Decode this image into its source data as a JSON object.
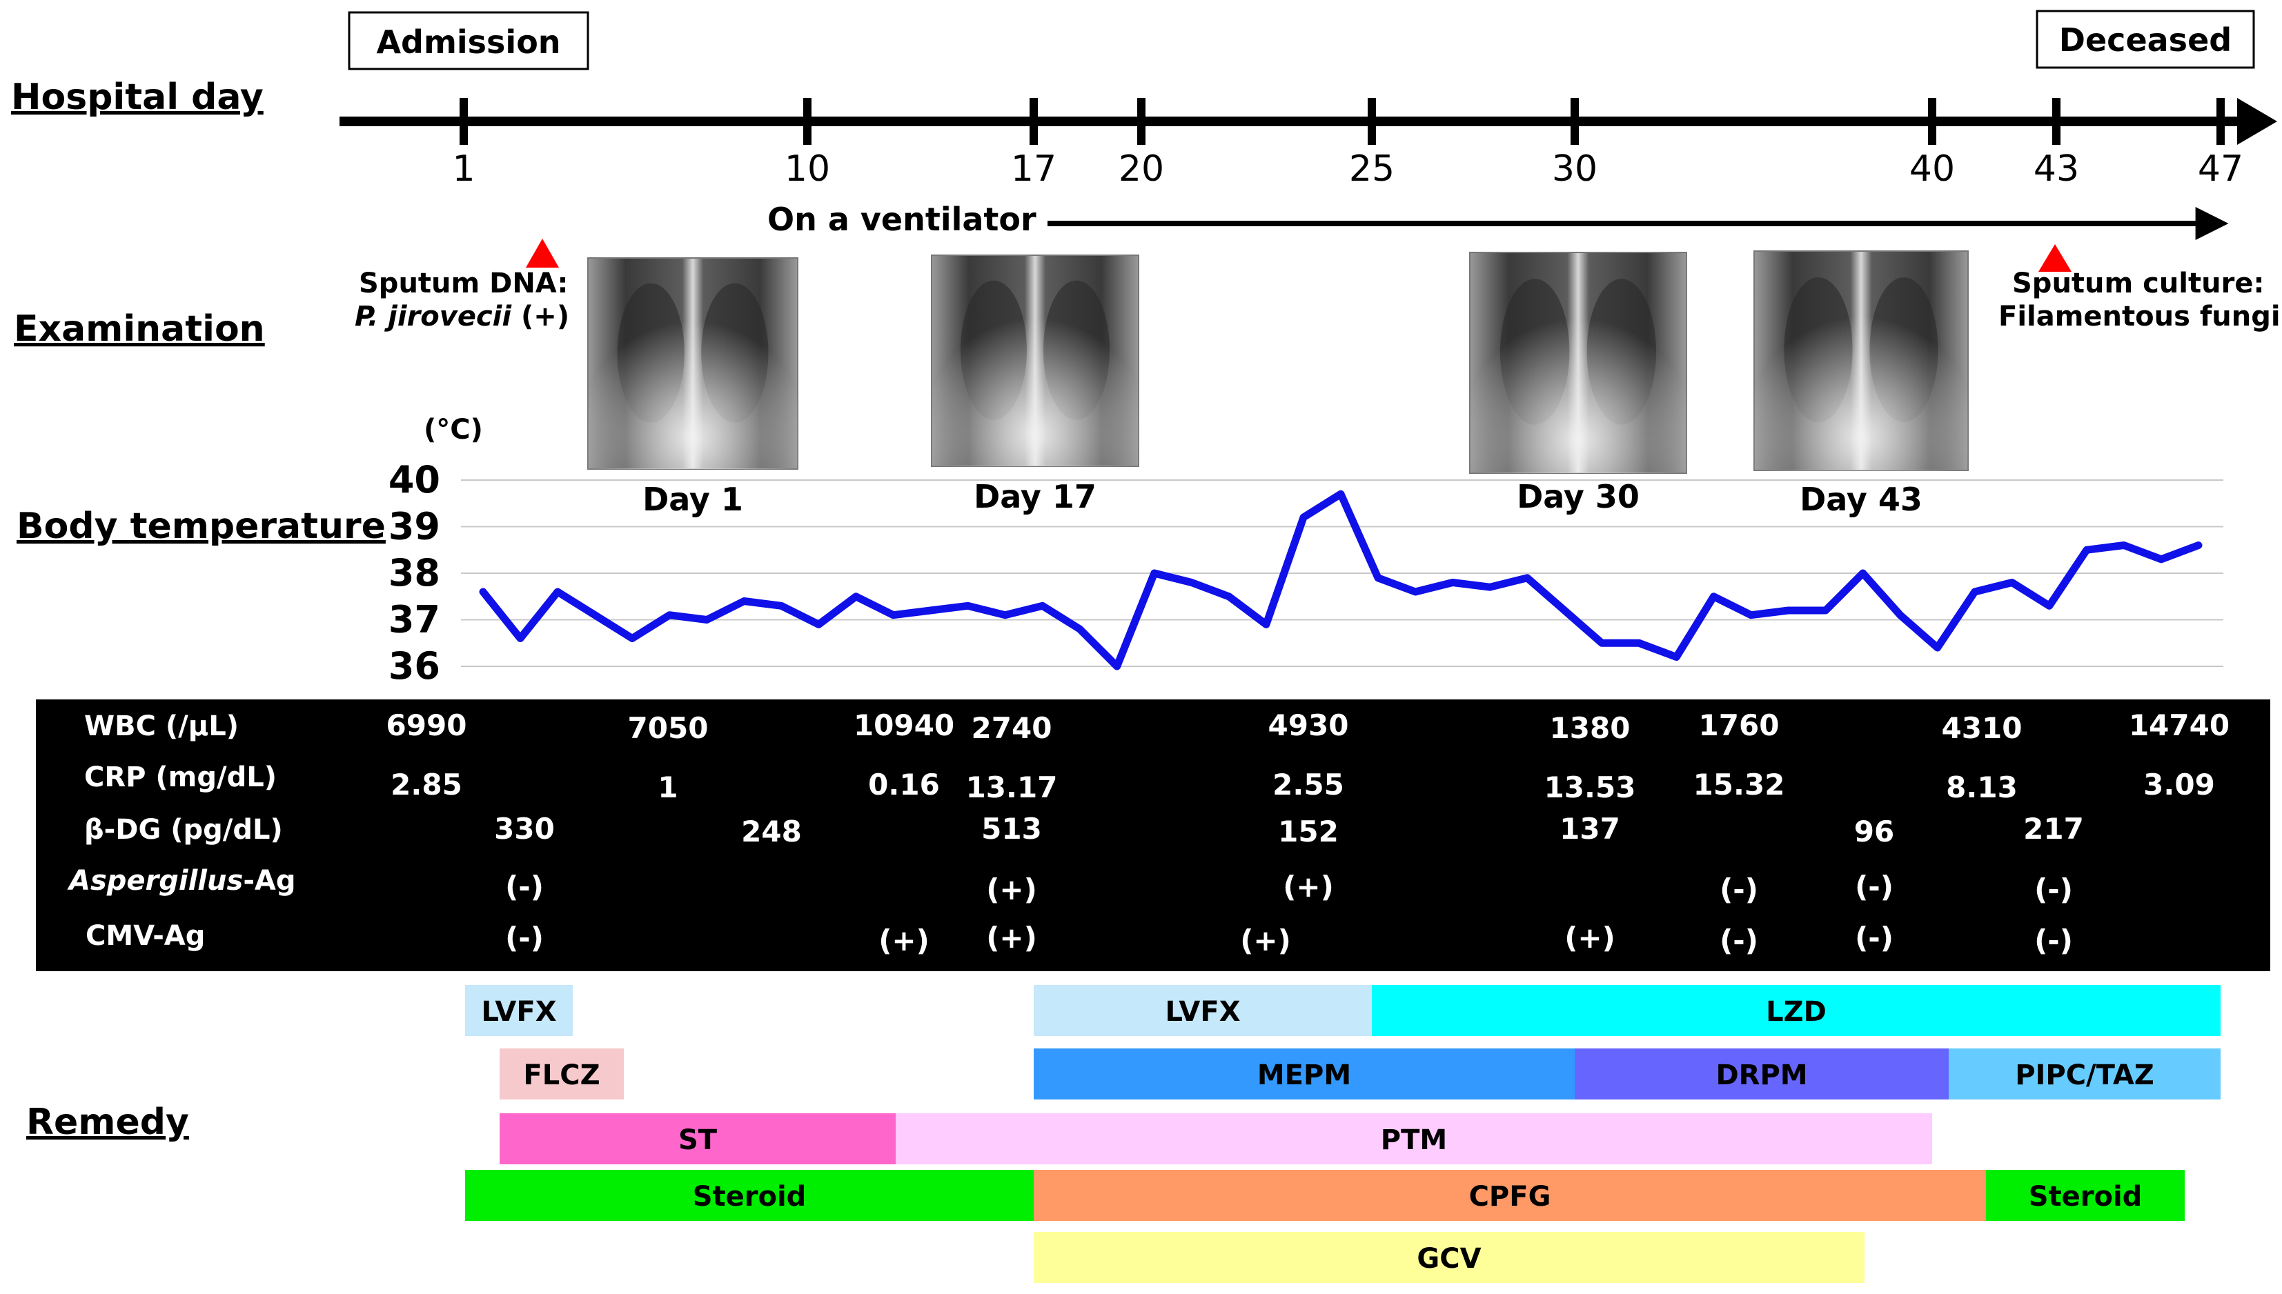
{
  "row_labels": {
    "hospital_day": "Hospital day",
    "examination": "Examination",
    "body_temperature": "Body temperature",
    "remedy": "Remedy"
  },
  "timeline": {
    "admission": "Admission",
    "deceased": "Deceased",
    "ticks": [
      "1",
      "10",
      "17",
      "20",
      "25",
      "30",
      "40",
      "43",
      "47"
    ],
    "ventilator": "On a ventilator"
  },
  "examination": {
    "sputum_dna_title": "Sputum DNA:",
    "sputum_dna_organism": "P. jirovecii",
    "sputum_dna_result": " (+)",
    "sputum_culture_title": "Sputum culture:",
    "sputum_culture_result": "Filamentous fungi",
    "xrays": [
      {
        "caption": "Day 1",
        "day": 1
      },
      {
        "caption": "Day 17",
        "day": 17
      },
      {
        "caption": "Day 30",
        "day": 30
      },
      {
        "caption": "Day 43",
        "day": 43
      }
    ],
    "marker_color": "#ff0000"
  },
  "chart_data": {
    "type": "line",
    "unit_label": "(°C)",
    "y_ticks": [
      "40",
      "39",
      "38",
      "37",
      "36"
    ],
    "ylim": [
      36,
      40
    ],
    "xlim": [
      1,
      47
    ],
    "grid": true,
    "line_color": "#1010e8",
    "series": [
      {
        "x": [
          1,
          2,
          3,
          4,
          5,
          6,
          7,
          8,
          9,
          10,
          11,
          12,
          13,
          14,
          15,
          16,
          17,
          18,
          19,
          20,
          21,
          22,
          23,
          24,
          25,
          26,
          27,
          28,
          29,
          30,
          31,
          32,
          33,
          34,
          35,
          36,
          37,
          38,
          39,
          40,
          41,
          42,
          43,
          44,
          45,
          46,
          47
        ],
        "y": [
          37.6,
          36.6,
          37.6,
          37.1,
          36.6,
          37.1,
          37.0,
          37.4,
          37.3,
          36.9,
          37.5,
          37.1,
          37.2,
          37.3,
          37.1,
          37.3,
          36.8,
          36.0,
          38.0,
          37.8,
          37.5,
          36.9,
          39.2,
          39.7,
          37.9,
          37.6,
          37.8,
          37.7,
          37.9,
          37.2,
          36.5,
          36.5,
          36.2,
          37.5,
          37.1,
          37.2,
          37.2,
          38.0,
          37.1,
          36.4,
          37.6,
          37.8,
          37.3,
          38.5,
          38.6,
          38.3,
          38.6
        ]
      }
    ]
  },
  "lab_table": {
    "rows": [
      {
        "label": "WBC (/µL)",
        "values": [
          {
            "text": "6990",
            "day": 1
          },
          {
            "text": "7050",
            "day": 6
          },
          {
            "text": "10940",
            "day": 10
          },
          {
            "text": "2740",
            "day": 13
          },
          {
            "text": "4930",
            "day": 20
          },
          {
            "text": "1380",
            "day": 26
          },
          {
            "text": "1760",
            "day": 30
          },
          {
            "text": "4310",
            "day": 37
          },
          {
            "text": "14740",
            "day": 42
          }
        ]
      },
      {
        "label": "CRP (mg/dL)",
        "values": [
          {
            "text": "2.85",
            "day": 1
          },
          {
            "text": "1",
            "day": 6
          },
          {
            "text": "0.16",
            "day": 10
          },
          {
            "text": "13.17",
            "day": 13
          },
          {
            "text": "2.55",
            "day": 20
          },
          {
            "text": "13.53",
            "day": 26
          },
          {
            "text": "15.32",
            "day": 30
          },
          {
            "text": "8.13",
            "day": 37
          },
          {
            "text": "3.09",
            "day": 42
          }
        ]
      },
      {
        "label": "β-DG (pg/dL)",
        "values": [
          {
            "text": "330",
            "day": 3
          },
          {
            "text": "248",
            "day": 8
          },
          {
            "text": "513",
            "day": 13
          },
          {
            "text": "152",
            "day": 20
          },
          {
            "text": "137",
            "day": 26
          },
          {
            "text": "96",
            "day": 34
          },
          {
            "text": "217",
            "day": 38
          }
        ]
      },
      {
        "label_italic": "Aspergillus",
        "label": "-Ag",
        "values": [
          {
            "text": "(-)",
            "day": 3
          },
          {
            "text": "(+)",
            "day": 13
          },
          {
            "text": "(+)",
            "day": 20
          },
          {
            "text": "(-)",
            "day": 30
          },
          {
            "text": "(-)",
            "day": 34
          },
          {
            "text": "(-)",
            "day": 38
          }
        ]
      },
      {
        "label": "CMV-Ag",
        "values": [
          {
            "text": "(-)",
            "day": 3
          },
          {
            "text": "(+)",
            "day": 10
          },
          {
            "text": "(+)",
            "day": 13
          },
          {
            "text": "(+)",
            "day": 19
          },
          {
            "text": "(+)",
            "day": 26
          },
          {
            "text": "(-)",
            "day": 30
          },
          {
            "text": "(-)",
            "day": 34
          },
          {
            "text": "(-)",
            "day": 38
          }
        ]
      }
    ]
  },
  "remedy": {
    "bars": [
      {
        "label": "LVFX",
        "start_day": 1,
        "end_day": 3,
        "row": 0,
        "color": "#c5e8fa"
      },
      {
        "label": "LVFX",
        "start_day": 17,
        "end_day": 25,
        "row": 0,
        "color": "#c5e8fa"
      },
      {
        "label": "LZD",
        "start_day": 25,
        "end_day": 47,
        "row": 0,
        "color": "#00ffff"
      },
      {
        "label": "FLCZ",
        "start_day": 2,
        "end_day": 4,
        "row": 1,
        "color": "#f6c9cc"
      },
      {
        "label": "MEPM",
        "start_day": 17,
        "end_day": 30,
        "row": 1,
        "color": "#3399ff"
      },
      {
        "label": "DRPM",
        "start_day": 30,
        "end_day": 39,
        "row": 1,
        "color": "#6666ff"
      },
      {
        "label": "PIPC/TAZ",
        "start_day": 39,
        "end_day": 47,
        "row": 1,
        "color": "#66ccff"
      },
      {
        "label": "ST",
        "start_day": 2,
        "end_day": 10,
        "row": 2,
        "color": "#ff66cc"
      },
      {
        "label": "PTM",
        "start_day": 10,
        "end_day": 40,
        "row": 2,
        "color": "#ffccff"
      },
      {
        "label": "Steroid",
        "start_day": 1,
        "end_day": 17,
        "row": 3,
        "color": "#00ee00"
      },
      {
        "label": "CPFG",
        "start_day": 17,
        "end_day": 42,
        "row": 3,
        "color": "#ff9966"
      },
      {
        "label": "Steroid",
        "start_day": 42,
        "end_day": 46,
        "row": 3,
        "color": "#00ee00"
      },
      {
        "label": "GCV",
        "start_day": 17,
        "end_day": 38,
        "row": 4,
        "color": "#ffff99"
      }
    ]
  }
}
